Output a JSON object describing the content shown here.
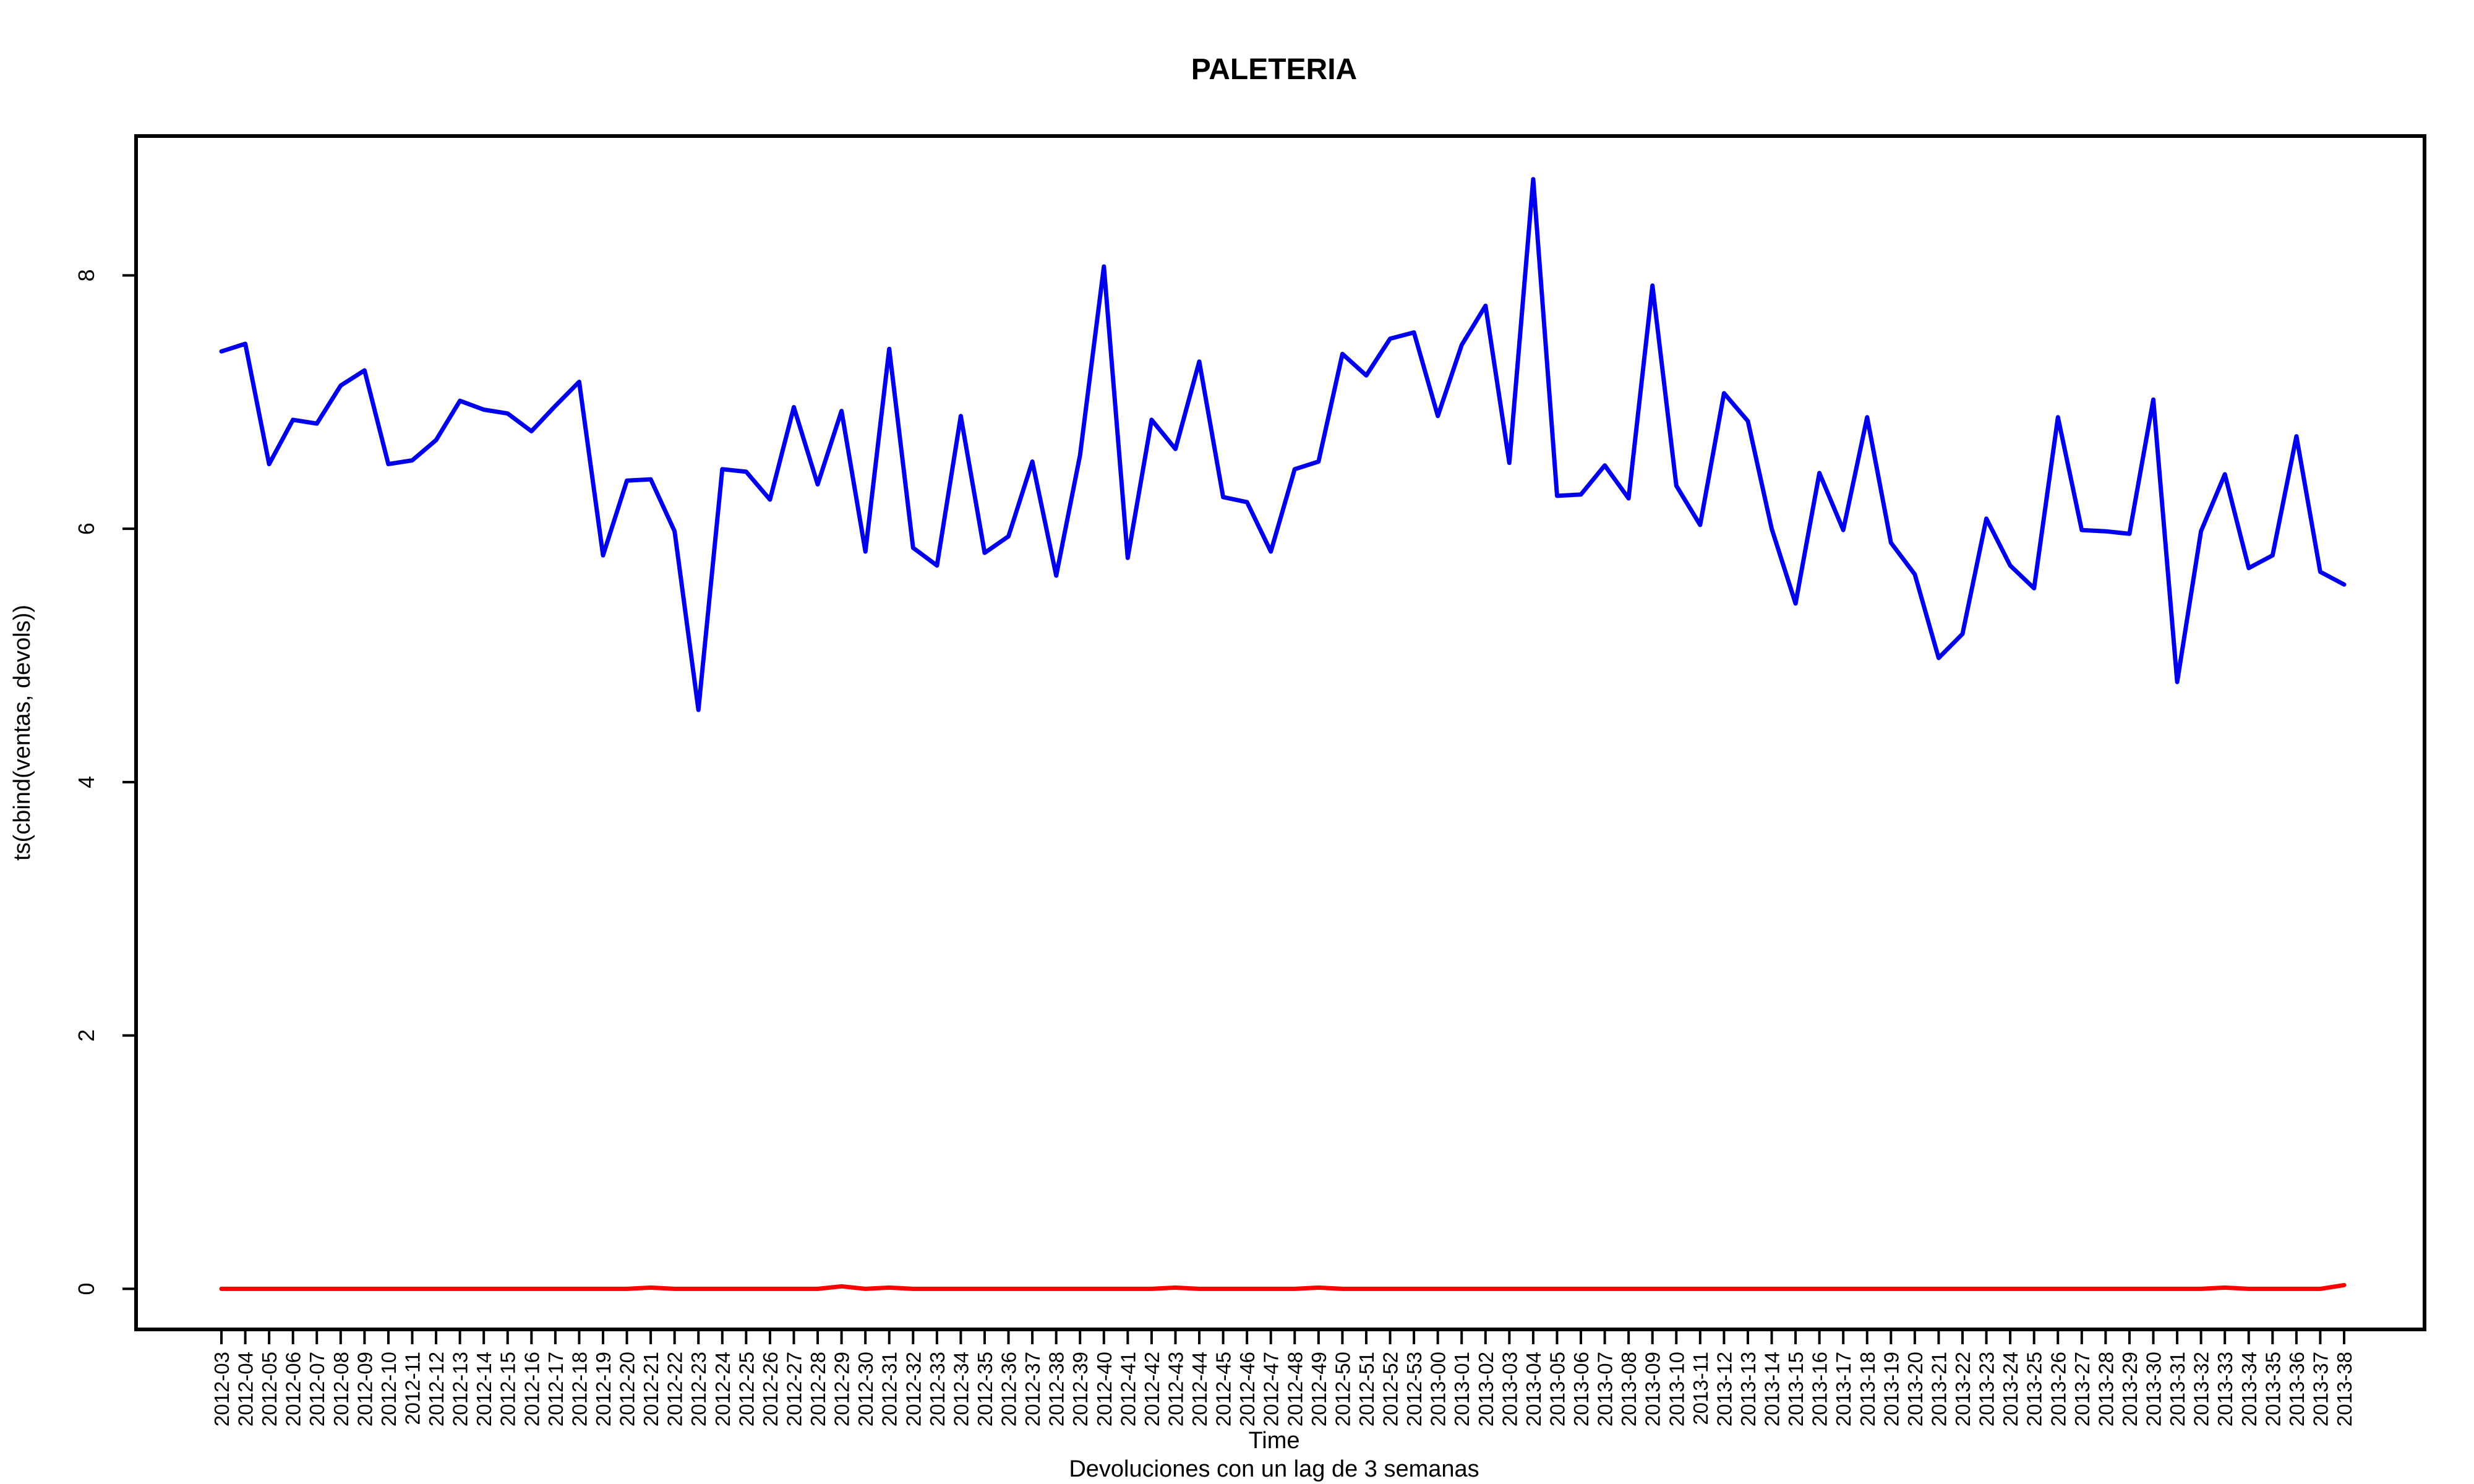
{
  "chart_data": {
    "type": "line",
    "title": "PALETERIA",
    "xlabel": "Time",
    "ylabel": "ts(cbind(ventas, devols))",
    "subtitle": "Devoluciones con un lag de 3 semanas",
    "ylim": [
      -0.32,
      9.1
    ],
    "yticks": [
      0,
      2,
      4,
      6,
      8
    ],
    "grid": false,
    "categories": [
      "2012-03",
      "2012-04",
      "2012-05",
      "2012-06",
      "2012-07",
      "2012-08",
      "2012-09",
      "2012-10",
      "2012-11",
      "2012-12",
      "2012-13",
      "2012-14",
      "2012-15",
      "2012-16",
      "2012-17",
      "2012-18",
      "2012-19",
      "2012-20",
      "2012-21",
      "2012-22",
      "2012-23",
      "2012-24",
      "2012-25",
      "2012-26",
      "2012-27",
      "2012-28",
      "2012-29",
      "2012-30",
      "2012-31",
      "2012-32",
      "2012-33",
      "2012-34",
      "2012-35",
      "2012-36",
      "2012-37",
      "2012-38",
      "2012-39",
      "2012-40",
      "2012-41",
      "2012-42",
      "2012-43",
      "2012-44",
      "2012-45",
      "2012-46",
      "2012-47",
      "2012-48",
      "2012-49",
      "2012-50",
      "2012-51",
      "2012-52",
      "2012-53",
      "2013-00",
      "2013-01",
      "2013-02",
      "2013-03",
      "2013-04",
      "2013-05",
      "2013-06",
      "2013-07",
      "2013-08",
      "2013-09",
      "2013-10",
      "2013-11",
      "2013-12",
      "2013-13",
      "2013-14",
      "2013-15",
      "2013-16",
      "2013-17",
      "2013-18",
      "2013-19",
      "2013-20",
      "2013-21",
      "2013-22",
      "2013-23",
      "2013-24",
      "2013-25",
      "2013-26",
      "2013-27",
      "2013-28",
      "2013-29",
      "2013-30",
      "2013-31",
      "2013-32",
      "2013-33",
      "2013-34",
      "2013-35",
      "2013-36",
      "2013-37",
      "2013-38"
    ],
    "series": [
      {
        "color": "#0000ee",
        "values": [
          7.4,
          7.46,
          6.51,
          6.86,
          6.83,
          7.13,
          7.25,
          6.51,
          6.54,
          6.7,
          7.01,
          6.94,
          6.91,
          6.77,
          6.97,
          7.16,
          5.79,
          6.38,
          6.39,
          5.98,
          4.57,
          6.47,
          6.45,
          6.23,
          6.96,
          6.35,
          6.93,
          5.82,
          7.42,
          5.85,
          5.71,
          6.89,
          5.81,
          5.94,
          6.53,
          5.63,
          6.58,
          8.07,
          5.77,
          6.86,
          6.63,
          7.32,
          6.25,
          6.21,
          5.82,
          6.47,
          6.53,
          7.38,
          7.21,
          7.5,
          7.55,
          6.89,
          7.45,
          7.76,
          6.52,
          8.76,
          6.26,
          6.27,
          6.5,
          6.24,
          7.92,
          6.34,
          6.03,
          7.07,
          6.85,
          6.0,
          5.41,
          6.44,
          5.99,
          6.88,
          5.89,
          5.64,
          4.98,
          5.17,
          6.08,
          5.71,
          5.53,
          6.88,
          5.99,
          5.98,
          5.96,
          7.02,
          4.79,
          5.98,
          6.43,
          5.69,
          5.79,
          6.73,
          5.66,
          5.56
        ]
      },
      {
        "color": "#ff0000",
        "values": [
          0,
          0,
          0,
          0,
          0,
          0,
          0,
          0,
          0,
          0,
          0,
          0,
          0,
          0,
          0,
          0,
          0,
          0,
          0.01,
          0,
          0,
          0,
          0,
          0,
          0,
          0,
          0.02,
          0,
          0.01,
          0,
          0,
          0,
          0,
          0,
          0,
          0,
          0,
          0,
          0,
          0,
          0.01,
          0,
          0,
          0,
          0,
          0,
          0.01,
          0,
          0,
          0,
          0,
          0,
          0,
          0,
          0,
          0,
          0,
          0,
          0,
          0,
          0,
          0,
          0,
          0,
          0,
          0,
          0,
          0,
          0,
          0,
          0,
          0,
          0,
          0,
          0,
          0,
          0,
          0,
          0,
          0,
          0,
          0,
          0,
          0,
          0.01,
          0,
          0,
          0,
          0,
          0.03
        ]
      }
    ]
  }
}
